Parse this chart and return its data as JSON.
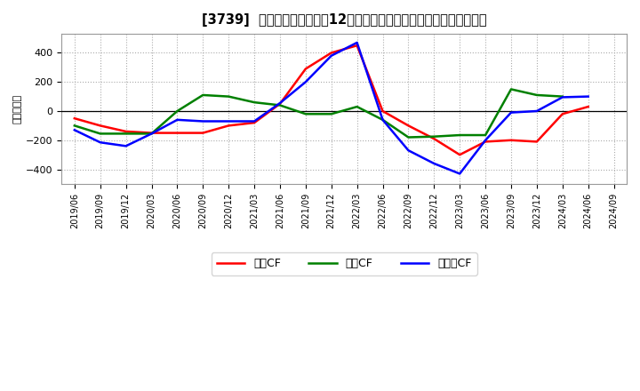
{
  "title": "[3739]  キャッシュフロー〒12か月移動合計の対前年同期増減額の推移",
  "ylabel": "（百万円）",
  "background_color": "#ffffff",
  "plot_bg_color": "#ffffff",
  "grid_color": "#aaaaaa",
  "xlabels": [
    "2019/06",
    "2019/09",
    "2019/12",
    "2020/03",
    "2020/06",
    "2020/09",
    "2020/12",
    "2021/03",
    "2021/06",
    "2021/09",
    "2021/12",
    "2022/03",
    "2022/06",
    "2022/09",
    "2022/12",
    "2023/03",
    "2023/06",
    "2023/09",
    "2023/12",
    "2024/03",
    "2024/06",
    "2024/09"
  ],
  "operating_cf": [
    -50,
    -100,
    -140,
    -150,
    -150,
    -150,
    -100,
    -80,
    50,
    290,
    400,
    450,
    0,
    -100,
    -190,
    -300,
    -210,
    -200,
    -210,
    -20,
    30,
    null
  ],
  "investing_cf": [
    -100,
    -155,
    -155,
    -155,
    0,
    110,
    100,
    60,
    40,
    -20,
    -20,
    30,
    -60,
    -180,
    -175,
    -165,
    -165,
    150,
    110,
    100,
    null,
    null
  ],
  "free_cf": [
    -130,
    -215,
    -240,
    -155,
    -60,
    -70,
    -70,
    -70,
    55,
    200,
    380,
    470,
    -60,
    -270,
    -360,
    -430,
    -200,
    -10,
    0,
    95,
    100,
    null
  ],
  "ylim": [
    -500,
    530
  ],
  "yticks": [
    -400,
    -200,
    0,
    200,
    400
  ],
  "colors": {
    "operating": "#ff0000",
    "investing": "#008000",
    "free": "#0000ff"
  },
  "legend_labels": [
    "営業CF",
    "投資CF",
    "フリーCF"
  ]
}
